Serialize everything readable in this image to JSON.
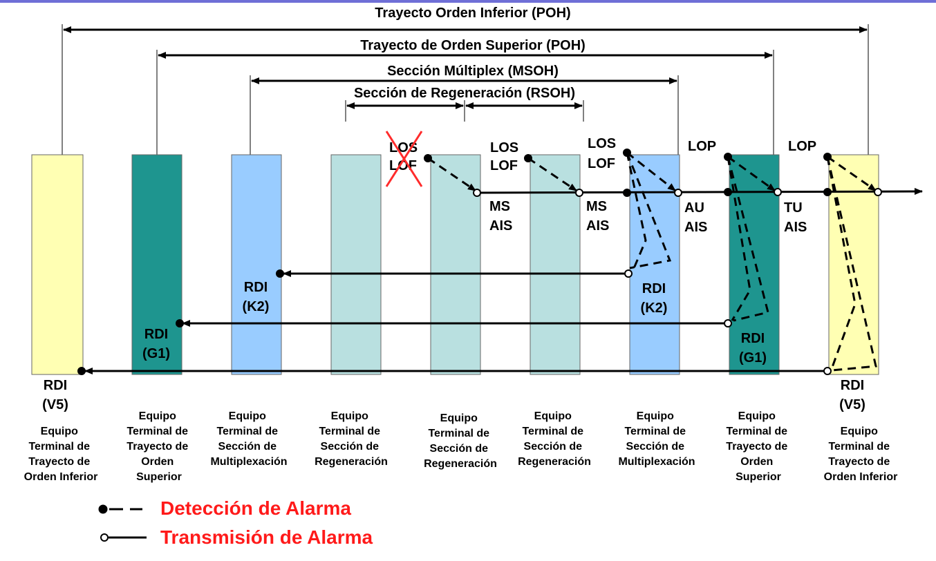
{
  "colors": {
    "top_bar": "#6f6fd6",
    "yellow_box": "#ffffb3",
    "teal_box": "#1e958f",
    "blue_box": "#99ccff",
    "pale_box": "#b9e0e0",
    "legend_red": "#ff1a1a",
    "cross_red": "#ff2b2b",
    "line": "#000000"
  },
  "spans": [
    {
      "label": "Trayecto Orden Inferior (POH)"
    },
    {
      "label": "Trayecto de Orden Superior (POH)"
    },
    {
      "label": "Sección Múltiplex (MSOH)"
    },
    {
      "label": "Sección de Regeneración (RSOH)"
    }
  ],
  "equipment": [
    {
      "color": "yellow",
      "lines": [
        "Equipo",
        "Terminal de",
        "Trayecto de",
        "Orden Inferior"
      ]
    },
    {
      "color": "teal",
      "lines": [
        "Equipo",
        "Terminal de",
        "Trayecto de",
        "Orden",
        "Superior"
      ]
    },
    {
      "color": "blue",
      "lines": [
        "Equipo",
        "Terminal de",
        "Sección de",
        "Multiplexación"
      ]
    },
    {
      "color": "pale",
      "lines": [
        "Equipo",
        "Terminal de",
        "Sección de",
        "Regeneración"
      ]
    },
    {
      "color": "pale",
      "lines": [
        "Equipo",
        "Terminal de",
        "Sección de",
        "Regeneración"
      ]
    },
    {
      "color": "pale",
      "lines": [
        "Equipo",
        "Terminal de",
        "Sección de",
        "Regeneración"
      ]
    },
    {
      "color": "blue",
      "lines": [
        "Equipo",
        "Terminal de",
        "Sección de",
        "Multiplexación"
      ]
    },
    {
      "color": "teal",
      "lines": [
        "Equipo",
        "Terminal de",
        "Trayecto de",
        "Orden",
        "Superior"
      ]
    },
    {
      "color": "yellow",
      "lines": [
        "Equipo",
        "Terminal de",
        "Trayecto de",
        "Orden Inferior"
      ]
    }
  ],
  "alarms": {
    "los_1": "LOS",
    "lof_1": "LOF",
    "los_2": "LOS",
    "lof_2": "LOF",
    "los_3": "LOS",
    "lof_3": "LOF",
    "lop_1": "LOP",
    "lop_2": "LOP",
    "ms_ais_1": [
      "MS",
      "AIS"
    ],
    "ms_ais_2": [
      "MS",
      "AIS"
    ],
    "au_ais": [
      "AU",
      "AIS"
    ],
    "tu_ais": [
      "TU",
      "AIS"
    ],
    "rdi_k2_left": [
      "RDI",
      "(K2)"
    ],
    "rdi_k2_right": [
      "RDI",
      "(K2)"
    ],
    "rdi_g1_left": [
      "RDI",
      "(G1)"
    ],
    "rdi_g1_right": [
      "RDI",
      "(G1)"
    ],
    "rdi_v5_left": [
      "RDI",
      "(V5)"
    ],
    "rdi_v5_right": [
      "RDI",
      "(V5)"
    ]
  },
  "legend": {
    "detection": "Detección de Alarma",
    "transmission": "Transmisión de Alarma"
  }
}
